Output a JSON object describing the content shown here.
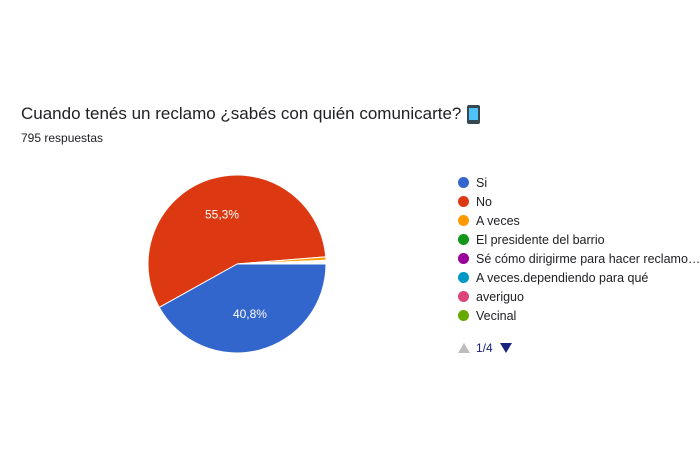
{
  "title": "Cuando tenés un reclamo ¿sabés con quién comunicarte?",
  "title_icon": "mobile-phone-icon",
  "subtitle": "795 respuestas",
  "pager": {
    "text": "1/4"
  },
  "chart_data": {
    "type": "pie",
    "title": "Cuando tenés un reclamo ¿sabés con quién comunicarte?",
    "legend_position": "right",
    "slices": [
      {
        "label": "Si",
        "value": 40.8,
        "color": "#3366cc",
        "data_label": "40,8%"
      },
      {
        "label": "No",
        "value": 55.3,
        "color": "#dc3912",
        "data_label": "55,3%"
      },
      {
        "label": "A veces",
        "value": 0.6,
        "color": "#ff9900",
        "data_label": ""
      },
      {
        "label": "El presidente del barrio",
        "value": 0.13,
        "color": "#109618",
        "data_label": ""
      },
      {
        "label": "Sé cómo dirigirme para hacer reclamo…",
        "value": 0.13,
        "color": "#990099",
        "data_label": ""
      },
      {
        "label": "A veces.dependiendo para qué",
        "value": 0.13,
        "color": "#0099c6",
        "data_label": ""
      },
      {
        "label": "averiguo",
        "value": 0.13,
        "color": "#dd4477",
        "data_label": ""
      },
      {
        "label": "Vecinal",
        "value": 0.13,
        "color": "#66aa00",
        "data_label": ""
      }
    ]
  }
}
